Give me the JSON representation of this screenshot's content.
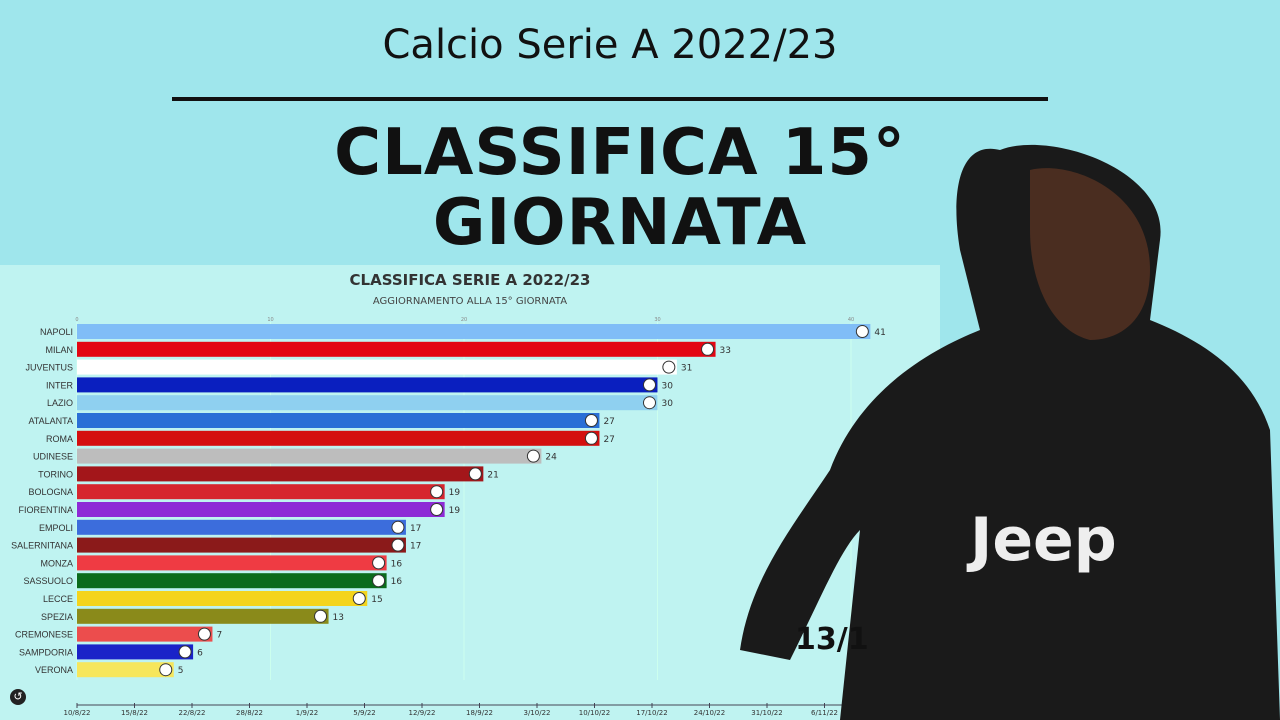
{
  "header": {
    "title": "Calcio Serie A 2022/23",
    "headline": "CLASSIFICA 15° GIORNATA"
  },
  "chart_data": {
    "type": "bar",
    "title": "CLASSIFICA SERIE A 2022/23",
    "subtitle": "AGGIORNAMENTO ALLA 15° GIORNATA",
    "xlim": [
      0,
      41
    ],
    "xticks": [
      0,
      10,
      20,
      30,
      40
    ],
    "categories": [
      "NAPOLI",
      "MILAN",
      "JUVENTUS",
      "INTER",
      "LAZIO",
      "ATALANTA",
      "ROMA",
      "UDINESE",
      "TORINO",
      "BOLOGNA",
      "FIORENTINA",
      "EMPOLI",
      "SALERNITANA",
      "MONZA",
      "SASSUOLO",
      "LECCE",
      "SPEZIA",
      "CREMONESE",
      "SAMPDORIA",
      "VERONA"
    ],
    "values": [
      41,
      33,
      31,
      30,
      30,
      27,
      27,
      24,
      21,
      19,
      19,
      17,
      17,
      16,
      16,
      15,
      13,
      7,
      6,
      5
    ],
    "colors": [
      "#80bdf7",
      "#e30613",
      "#ffffff",
      "#0a1fbf",
      "#8fd0f0",
      "#2a6fd6",
      "#d40f0f",
      "#bdbdbd",
      "#a3161a",
      "#d6262e",
      "#8e2ad6",
      "#3c6ddc",
      "#8b1a1a",
      "#ef3b43",
      "#0b6b1b",
      "#f4d41c",
      "#8a8a1a",
      "#ec4d4d",
      "#1a23c8",
      "#f6e65c"
    ],
    "timeline": [
      "10/8/22",
      "15/8/22",
      "22/8/22",
      "28/8/22",
      "1/9/22",
      "5/9/22",
      "12/9/22",
      "18/9/22",
      "3/10/22",
      "10/10/22",
      "17/10/22",
      "24/10/22",
      "31/10/22",
      "6/11/22"
    ],
    "current_date": "13/1"
  },
  "controls": {
    "replay_icon": "↺"
  }
}
